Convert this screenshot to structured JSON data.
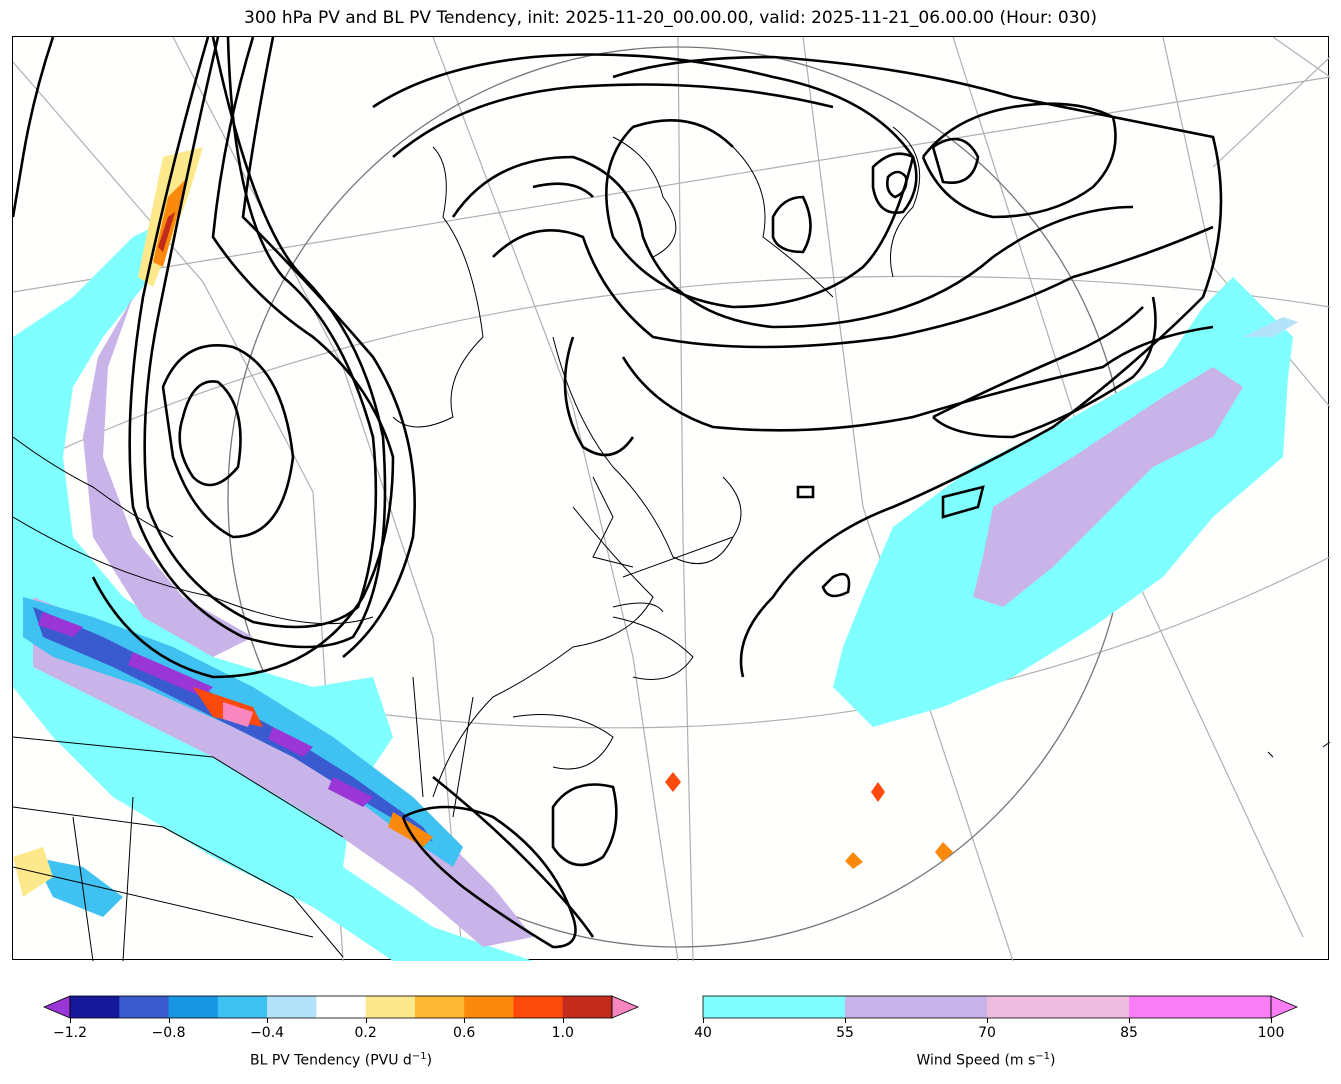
{
  "title": "300 hPa PV and BL PV Tendency, init: 2025-11-20_00.00.00, valid: 2025-11-21_06.00.00 (Hour: 030)",
  "colorbars": {
    "pv_tendency": {
      "label_main": "BL PV Tendency (PVU d",
      "label_sup": "−1",
      "label_end": ")",
      "ticks": [
        "−1.2",
        "−0.8",
        "−0.4",
        "0.2",
        "0.6",
        "1.0"
      ],
      "levels": [
        -1.2,
        -1.0,
        -0.8,
        -0.6,
        -0.4,
        -0.2,
        0.2,
        0.4,
        0.6,
        0.8,
        1.0,
        1.2
      ],
      "colors": [
        "#9a35d6",
        "#16189a",
        "#3a5bd0",
        "#1896e4",
        "#3fc2f2",
        "#b3e2fb",
        "#ffffff",
        "#fde98c",
        "#fdb933",
        "#fb8a0c",
        "#fb4a0b",
        "#c32c1d",
        "#f987bf"
      ]
    },
    "wind_speed": {
      "label_main": "Wind Speed (m s",
      "label_sup": "−1",
      "label_end": ")",
      "ticks": [
        "40",
        "55",
        "70",
        "85",
        "100"
      ],
      "levels": [
        40,
        55,
        70,
        85,
        100
      ],
      "colors": [
        "#7fffff",
        "#c8b4e8",
        "#eebce0",
        "#f97ef5"
      ]
    }
  },
  "map": {
    "projection_center_marker": "circle",
    "pv_contour_color": "#000000",
    "coastline_color": "#000000",
    "gridline_color": "#aaaaaa"
  }
}
